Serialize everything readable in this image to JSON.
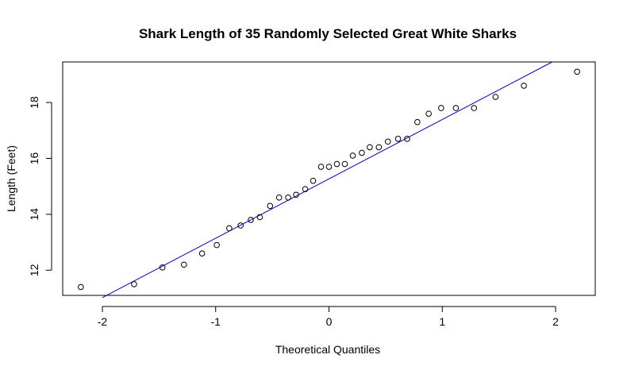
{
  "chart_data": {
    "type": "scatter",
    "title": "Shark Length of 35 Randomly Selected Great White Sharks",
    "xlabel": "Theoretical Quantiles",
    "ylabel": "Length (Feet)",
    "xlim": [
      -2.35,
      2.35
    ],
    "ylim": [
      11.1,
      19.45
    ],
    "x_ticks": [
      -2,
      -1,
      0,
      1,
      2
    ],
    "y_ticks": [
      12,
      14,
      16,
      18
    ],
    "grid": false,
    "legend": "none",
    "point_color": "#000000",
    "line_color": "#0000cc",
    "points": [
      {
        "x": -2.19,
        "y": 11.4
      },
      {
        "x": -1.72,
        "y": 11.5
      },
      {
        "x": -1.47,
        "y": 12.1
      },
      {
        "x": -1.28,
        "y": 12.2
      },
      {
        "x": -1.12,
        "y": 12.6
      },
      {
        "x": -0.99,
        "y": 12.9
      },
      {
        "x": -0.88,
        "y": 13.5
      },
      {
        "x": -0.78,
        "y": 13.6
      },
      {
        "x": -0.69,
        "y": 13.8
      },
      {
        "x": -0.61,
        "y": 13.9
      },
      {
        "x": -0.52,
        "y": 14.3
      },
      {
        "x": -0.44,
        "y": 14.6
      },
      {
        "x": -0.36,
        "y": 14.6
      },
      {
        "x": -0.29,
        "y": 14.7
      },
      {
        "x": -0.21,
        "y": 14.9
      },
      {
        "x": -0.14,
        "y": 15.2
      },
      {
        "x": -0.07,
        "y": 15.7
      },
      {
        "x": 0.0,
        "y": 15.7
      },
      {
        "x": 0.07,
        "y": 15.8
      },
      {
        "x": 0.14,
        "y": 15.8
      },
      {
        "x": 0.21,
        "y": 16.1
      },
      {
        "x": 0.29,
        "y": 16.2
      },
      {
        "x": 0.36,
        "y": 16.4
      },
      {
        "x": 0.44,
        "y": 16.4
      },
      {
        "x": 0.52,
        "y": 16.6
      },
      {
        "x": 0.61,
        "y": 16.7
      },
      {
        "x": 0.69,
        "y": 16.7
      },
      {
        "x": 0.78,
        "y": 17.3
      },
      {
        "x": 0.88,
        "y": 17.6
      },
      {
        "x": 0.99,
        "y": 17.8
      },
      {
        "x": 1.12,
        "y": 17.8
      },
      {
        "x": 1.28,
        "y": 17.8
      },
      {
        "x": 1.47,
        "y": 18.2
      },
      {
        "x": 1.72,
        "y": 18.6
      },
      {
        "x": 2.19,
        "y": 19.1
      }
    ],
    "reference_line": {
      "x1": -2.0,
      "y1": 11.02,
      "x2": 1.97,
      "y2": 19.45
    }
  }
}
